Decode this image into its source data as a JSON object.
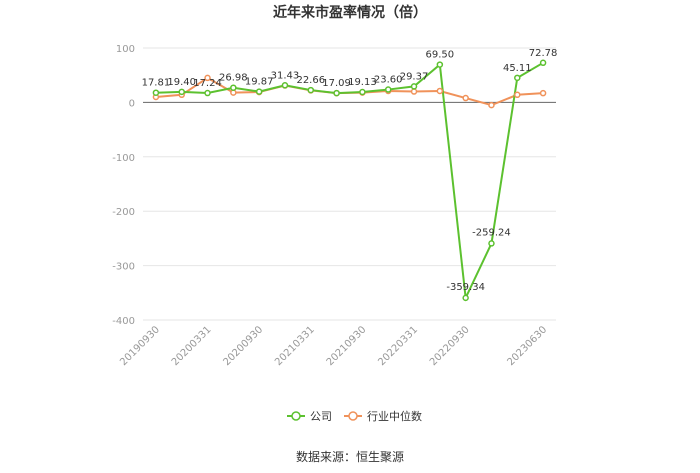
{
  "chart_data": {
    "type": "line",
    "title": "近年来市盈率情况（倍）",
    "source": "数据来源：恒生聚源",
    "ylim": [
      -400,
      100
    ],
    "yticks": [
      100,
      0,
      -100,
      -200,
      -300,
      -400
    ],
    "x_tick_labels": [
      "20190930",
      "20200331",
      "20200930",
      "20210331",
      "20210930",
      "20220331",
      "20220930",
      "20230630"
    ],
    "x": [
      "20190930",
      "20191231",
      "20200331",
      "20200630",
      "20200930",
      "20201231",
      "20210331",
      "20210630",
      "20210930",
      "20211231",
      "20220331",
      "20220630",
      "20220930",
      "20221231",
      "20230331",
      "20230630"
    ],
    "legend_position": "bottom",
    "series": [
      {
        "name": "公司",
        "color": "#5cc12f",
        "values": [
          17.81,
          19.4,
          17.24,
          26.98,
          19.87,
          31.43,
          22.66,
          17.09,
          19.13,
          23.6,
          29.37,
          69.5,
          -359.34,
          -259.24,
          45.11,
          72.78
        ],
        "labels": [
          "17.81",
          "19.40",
          "17.24",
          "26.98",
          "19.87",
          "31.43",
          "22.66",
          "17.09",
          "19.13",
          "23.60",
          "29.37",
          "69.50",
          "-359.34",
          "-259.24",
          "45.11",
          "72.78"
        ]
      },
      {
        "name": "行业中位数",
        "color": "#f0925a",
        "values": [
          10,
          14,
          45,
          18,
          19,
          31,
          22,
          17,
          18,
          21,
          20,
          21,
          8,
          -5,
          14,
          17
        ]
      }
    ]
  }
}
